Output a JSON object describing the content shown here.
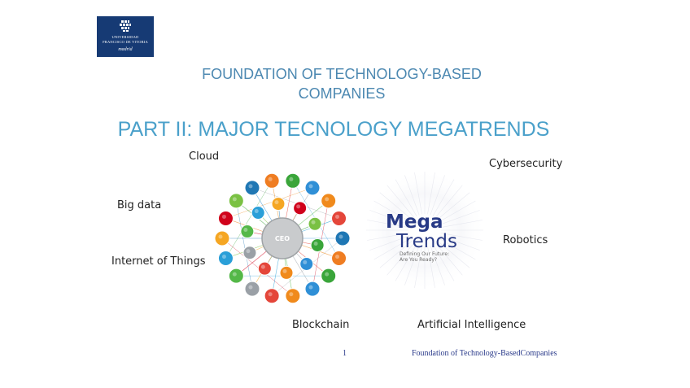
{
  "logo": {
    "line1": "UNIVERSIDAD",
    "line2": "FRANCISCO DE VITORIA",
    "line3": "madrid"
  },
  "title": {
    "top": "FOUNDATION OF TECHNOLOGY-BASED COMPANIES",
    "main": "PART II: MAJOR TECNOLOGY MEGATRENDS"
  },
  "trends": {
    "cloud": "Cloud",
    "big_data": "Big data",
    "iot": "Internet of Things",
    "blockchain": "Blockchain",
    "cybersecurity": "Cybersecurity",
    "robotics": "Robotics",
    "ai": "Artificial Intelligence"
  },
  "diagram": {
    "center_label": "CEO"
  },
  "megatrends_logo": {
    "line1": "Mega",
    "line2": "Trends",
    "tagline1": "Defining Our Future:",
    "tagline2": "Are You Ready?"
  },
  "footer": {
    "page_number": "1",
    "text": "Foundation of Technology-BasedCompanies"
  },
  "colors": {
    "title_top": "#4c88b1",
    "title_main": "#4aa0ca",
    "logo_bg": "#163a74",
    "footer_text": "#2a3a8a"
  }
}
